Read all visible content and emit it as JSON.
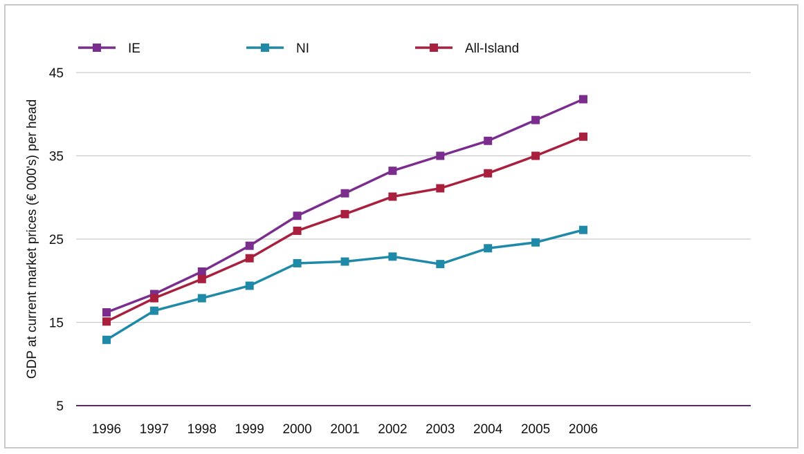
{
  "chart_data": {
    "type": "line",
    "title": "",
    "xlabel": "",
    "ylabel": "GDP at current market prices (€ 000's) per head",
    "categories": [
      "1996",
      "1997",
      "1998",
      "1999",
      "2000",
      "2001",
      "2002",
      "2003",
      "2004",
      "2005",
      "2006"
    ],
    "y_ticks": [
      "5",
      "15",
      "25",
      "35",
      "45"
    ],
    "ylim": [
      5,
      45
    ],
    "grid": "horizontal",
    "legend_position": "top",
    "series": [
      {
        "name": "IE",
        "color": "#7b2d8e",
        "values": [
          16.2,
          18.4,
          21.1,
          24.2,
          27.8,
          30.5,
          33.2,
          35.0,
          36.8,
          39.3,
          41.8
        ]
      },
      {
        "name": "NI",
        "color": "#1f89a8",
        "values": [
          12.9,
          16.4,
          17.9,
          19.4,
          22.1,
          22.3,
          22.9,
          22.0,
          23.9,
          24.6,
          26.1
        ]
      },
      {
        "name": "All-Island",
        "color": "#a8203e",
        "values": [
          15.1,
          17.9,
          20.2,
          22.7,
          26.0,
          28.0,
          30.1,
          31.1,
          32.9,
          35.0,
          37.3
        ]
      }
    ]
  }
}
